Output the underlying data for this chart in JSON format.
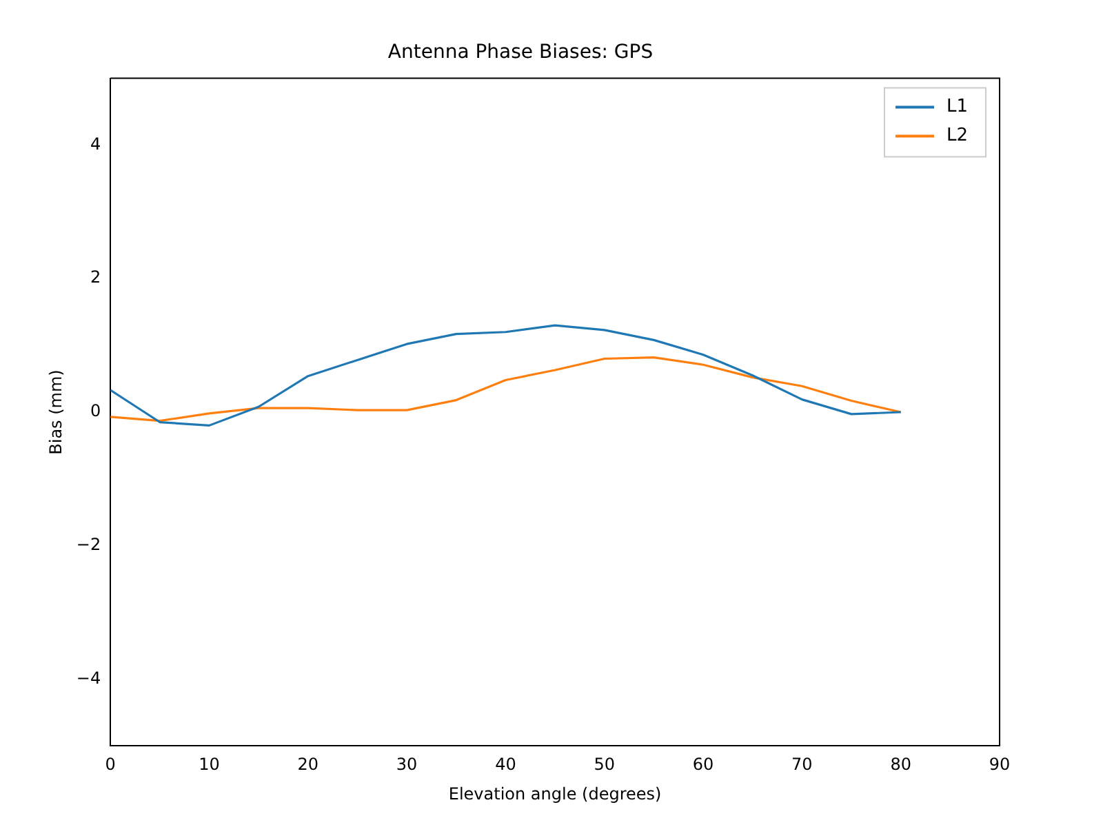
{
  "chart_data": {
    "type": "line",
    "title": "Antenna Phase Biases: GPS",
    "xlabel": "Elevation angle (degrees)",
    "ylabel": "Bias (mm)",
    "x": [
      0,
      5,
      10,
      15,
      20,
      25,
      30,
      35,
      40,
      45,
      50,
      55,
      60,
      65,
      70,
      75,
      80
    ],
    "series": [
      {
        "name": "L1",
        "color": "#1f77b4",
        "values": [
          0.33,
          -0.15,
          -0.2,
          0.08,
          0.54,
          0.78,
          1.02,
          1.17,
          1.2,
          1.3,
          1.23,
          1.08,
          0.86,
          0.55,
          0.19,
          -0.03,
          0
        ]
      },
      {
        "name": "L2",
        "color": "#ff7f0e",
        "values": [
          -0.07,
          -0.13,
          -0.02,
          0.06,
          0.06,
          0.03,
          0.03,
          0.18,
          0.48,
          0.63,
          0.8,
          0.82,
          0.71,
          0.52,
          0.39,
          0.17,
          0
        ]
      }
    ],
    "xlim": [
      0,
      90
    ],
    "xticks": [
      0,
      10,
      20,
      30,
      40,
      50,
      60,
      70,
      80,
      90
    ],
    "ylim": [
      -5,
      5
    ],
    "yticks": [
      {
        "value": -4,
        "label": "−4"
      },
      {
        "value": -2,
        "label": "−2"
      },
      0,
      2,
      4
    ],
    "grid": false,
    "legend": "top right",
    "marker": "none",
    "line_style": "solid"
  }
}
